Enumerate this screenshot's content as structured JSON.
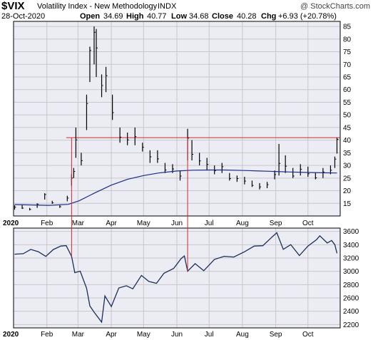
{
  "header": {
    "symbol": "$VIX",
    "name": "Volatility Index - New Methodology",
    "exchange": "INDX",
    "watermark": "@ StockCharts.com",
    "date": "28-Oct-2020",
    "open_label": "Open",
    "open_value": "34.69",
    "high_label": "High",
    "high_value": "40.77",
    "low_label": "Low",
    "low_value": "34.68",
    "close_label": "Close",
    "close_value": "40.28",
    "chg_label": "Chg",
    "chg_value": "+6.93 (+20.78%)"
  },
  "colors": {
    "price": "#000000",
    "moving_average": "#1c2a8c",
    "reference": "#cc2a2a",
    "grid": "#c8c8c8",
    "panel_bg": "#ececf4",
    "frame": "#000000",
    "line_panel": "#1a2e56"
  },
  "chart_data": [
    {
      "type": "line",
      "subtype": "hlc-bars-with-moving-average",
      "title": "$VIX Volatility Index - New Methodology INDX",
      "x_unit": "date",
      "xlim": [
        "2020-01-01",
        "2020-10-31"
      ],
      "ylim": [
        10,
        87
      ],
      "y_ticks": [
        15,
        20,
        25,
        30,
        35,
        40,
        45,
        50,
        55,
        60,
        65,
        70,
        75,
        80,
        85
      ],
      "x_tick_labels": [
        "2020",
        "Feb",
        "Mar",
        "Apr",
        "May",
        "Jun",
        "Jul",
        "Aug",
        "Sep",
        "Oct"
      ],
      "x_tick_dates": [
        "2020-01-01",
        "2020-02-01",
        "2020-03-01",
        "2020-04-01",
        "2020-05-01",
        "2020-06-01",
        "2020-07-01",
        "2020-08-01",
        "2020-09-01",
        "2020-10-01"
      ],
      "grid": true,
      "y_axis_side": "right",
      "reference_level": 41,
      "series": [
        {
          "style": "bars",
          "x": [
            "2020-01-02",
            "2020-01-09",
            "2020-01-16",
            "2020-01-23",
            "2020-01-30",
            "2020-02-06",
            "2020-02-13",
            "2020-02-20",
            "2020-02-24",
            "2020-02-26",
            "2020-02-28",
            "2020-03-04",
            "2020-03-09",
            "2020-03-12",
            "2020-03-16",
            "2020-03-18",
            "2020-03-23",
            "2020-03-27",
            "2020-04-02",
            "2020-04-09",
            "2020-04-16",
            "2020-04-23",
            "2020-04-30",
            "2020-05-07",
            "2020-05-14",
            "2020-05-21",
            "2020-05-28",
            "2020-06-04",
            "2020-06-11",
            "2020-06-15",
            "2020-06-22",
            "2020-06-29",
            "2020-07-06",
            "2020-07-13",
            "2020-07-20",
            "2020-07-27",
            "2020-08-03",
            "2020-08-10",
            "2020-08-17",
            "2020-08-24",
            "2020-08-31",
            "2020-09-04",
            "2020-09-10",
            "2020-09-17",
            "2020-09-24",
            "2020-10-01",
            "2020-10-08",
            "2020-10-15",
            "2020-10-22",
            "2020-10-26",
            "2020-10-28"
          ],
          "close": [
            13.5,
            13.1,
            12.6,
            14.6,
            18.5,
            15.2,
            13.7,
            17.1,
            25.0,
            27.6,
            40.1,
            31.9,
            54.5,
            75.5,
            82.7,
            76.5,
            61.6,
            65.5,
            50.9,
            41.2,
            40.1,
            41.4,
            37.2,
            33.4,
            32.6,
            28.2,
            28.6,
            25.8,
            40.8,
            34.4,
            31.8,
            30.4,
            27.9,
            29.5,
            24.8,
            24.8,
            23.8,
            22.1,
            21.5,
            22.4,
            26.4,
            30.8,
            29.7,
            25.8,
            28.5,
            26.7,
            25.1,
            27.4,
            28.1,
            32.5,
            40.3
          ],
          "high": [
            14.2,
            14.5,
            13.2,
            15.0,
            19.0,
            16.0,
            14.2,
            18.0,
            26.5,
            29.0,
            45.0,
            35.0,
            58.0,
            77.0,
            85.0,
            84.0,
            66.0,
            69.0,
            58.0,
            45.0,
            43.0,
            45.0,
            39.0,
            36.0,
            36.0,
            31.0,
            30.5,
            28.0,
            44.5,
            40.0,
            35.0,
            33.0,
            30.0,
            31.0,
            27.0,
            26.0,
            25.5,
            24.0,
            23.0,
            23.5,
            28.0,
            38.5,
            34.0,
            29.0,
            30.5,
            29.5,
            27.0,
            29.0,
            30.0,
            33.5,
            41.0
          ],
          "low": [
            12.5,
            12.8,
            12.2,
            13.2,
            16.5,
            14.8,
            13.2,
            15.8,
            22.0,
            25.0,
            33.0,
            30.0,
            44.0,
            63.0,
            70.0,
            65.0,
            57.0,
            59.0,
            48.0,
            39.0,
            38.0,
            38.0,
            35.5,
            31.0,
            31.0,
            27.0,
            27.0,
            24.0,
            32.0,
            32.0,
            30.0,
            28.0,
            26.5,
            27.0,
            24.0,
            23.5,
            22.5,
            21.5,
            20.5,
            21.0,
            24.5,
            26.0,
            27.0,
            25.0,
            26.0,
            25.5,
            24.5,
            25.0,
            26.5,
            29.0,
            34.7
          ]
        },
        {
          "style": "line",
          "x": [
            "2020-01-02",
            "2020-02-03",
            "2020-02-21",
            "2020-03-02",
            "2020-03-16",
            "2020-04-01",
            "2020-04-16",
            "2020-05-01",
            "2020-05-15",
            "2020-06-01",
            "2020-06-15",
            "2020-07-01",
            "2020-07-15",
            "2020-08-03",
            "2020-08-17",
            "2020-09-01",
            "2020-09-15",
            "2020-10-01",
            "2020-10-15",
            "2020-10-28"
          ],
          "y": [
            14.5,
            14.2,
            14.6,
            16.0,
            19.0,
            22.2,
            24.5,
            26.0,
            27.0,
            27.8,
            28.1,
            28.2,
            28.2,
            28.0,
            27.8,
            27.6,
            27.4,
            27.2,
            27.1,
            27.0
          ]
        }
      ]
    },
    {
      "type": "line",
      "xlim": [
        "2020-01-01",
        "2020-10-31"
      ],
      "ylim": [
        2150,
        3650
      ],
      "y_ticks": [
        2200,
        2400,
        2600,
        2800,
        3000,
        3200,
        3400,
        3600
      ],
      "x_tick_labels": [
        "2020",
        "Feb",
        "Mar",
        "Apr",
        "May",
        "Jun",
        "Jul",
        "Aug",
        "Sep",
        "Oct"
      ],
      "x_tick_dates": [
        "2020-01-01",
        "2020-02-01",
        "2020-03-01",
        "2020-04-01",
        "2020-05-01",
        "2020-06-01",
        "2020-07-01",
        "2020-08-01",
        "2020-09-01",
        "2020-10-01"
      ],
      "grid": true,
      "y_axis_side": "right",
      "series": [
        {
          "x": [
            "2020-01-02",
            "2020-01-10",
            "2020-01-17",
            "2020-01-24",
            "2020-01-31",
            "2020-02-07",
            "2020-02-14",
            "2020-02-19",
            "2020-02-24",
            "2020-02-27",
            "2020-03-03",
            "2020-03-09",
            "2020-03-12",
            "2020-03-16",
            "2020-03-23",
            "2020-03-26",
            "2020-04-01",
            "2020-04-08",
            "2020-04-15",
            "2020-04-21",
            "2020-04-29",
            "2020-05-06",
            "2020-05-13",
            "2020-05-20",
            "2020-05-29",
            "2020-06-05",
            "2020-06-08",
            "2020-06-11",
            "2020-06-18",
            "2020-06-26",
            "2020-07-06",
            "2020-07-15",
            "2020-07-24",
            "2020-08-03",
            "2020-08-12",
            "2020-08-20",
            "2020-08-28",
            "2020-09-02",
            "2020-09-08",
            "2020-09-15",
            "2020-09-23",
            "2020-10-01",
            "2020-10-09",
            "2020-10-12",
            "2020-10-19",
            "2020-10-23",
            "2020-10-26",
            "2020-10-28"
          ],
          "y": [
            3258,
            3265,
            3330,
            3295,
            3225,
            3327,
            3380,
            3386,
            3225,
            2979,
            3003,
            2746,
            2480,
            2386,
            2237,
            2630,
            2470,
            2750,
            2783,
            2737,
            2939,
            2848,
            2820,
            2971,
            3044,
            3193,
            3232,
            3002,
            3115,
            3009,
            3180,
            3226,
            3215,
            3294,
            3380,
            3385,
            3508,
            3580,
            3331,
            3401,
            3237,
            3380,
            3477,
            3534,
            3426,
            3465,
            3400,
            3271
          ]
        }
      ]
    }
  ]
}
